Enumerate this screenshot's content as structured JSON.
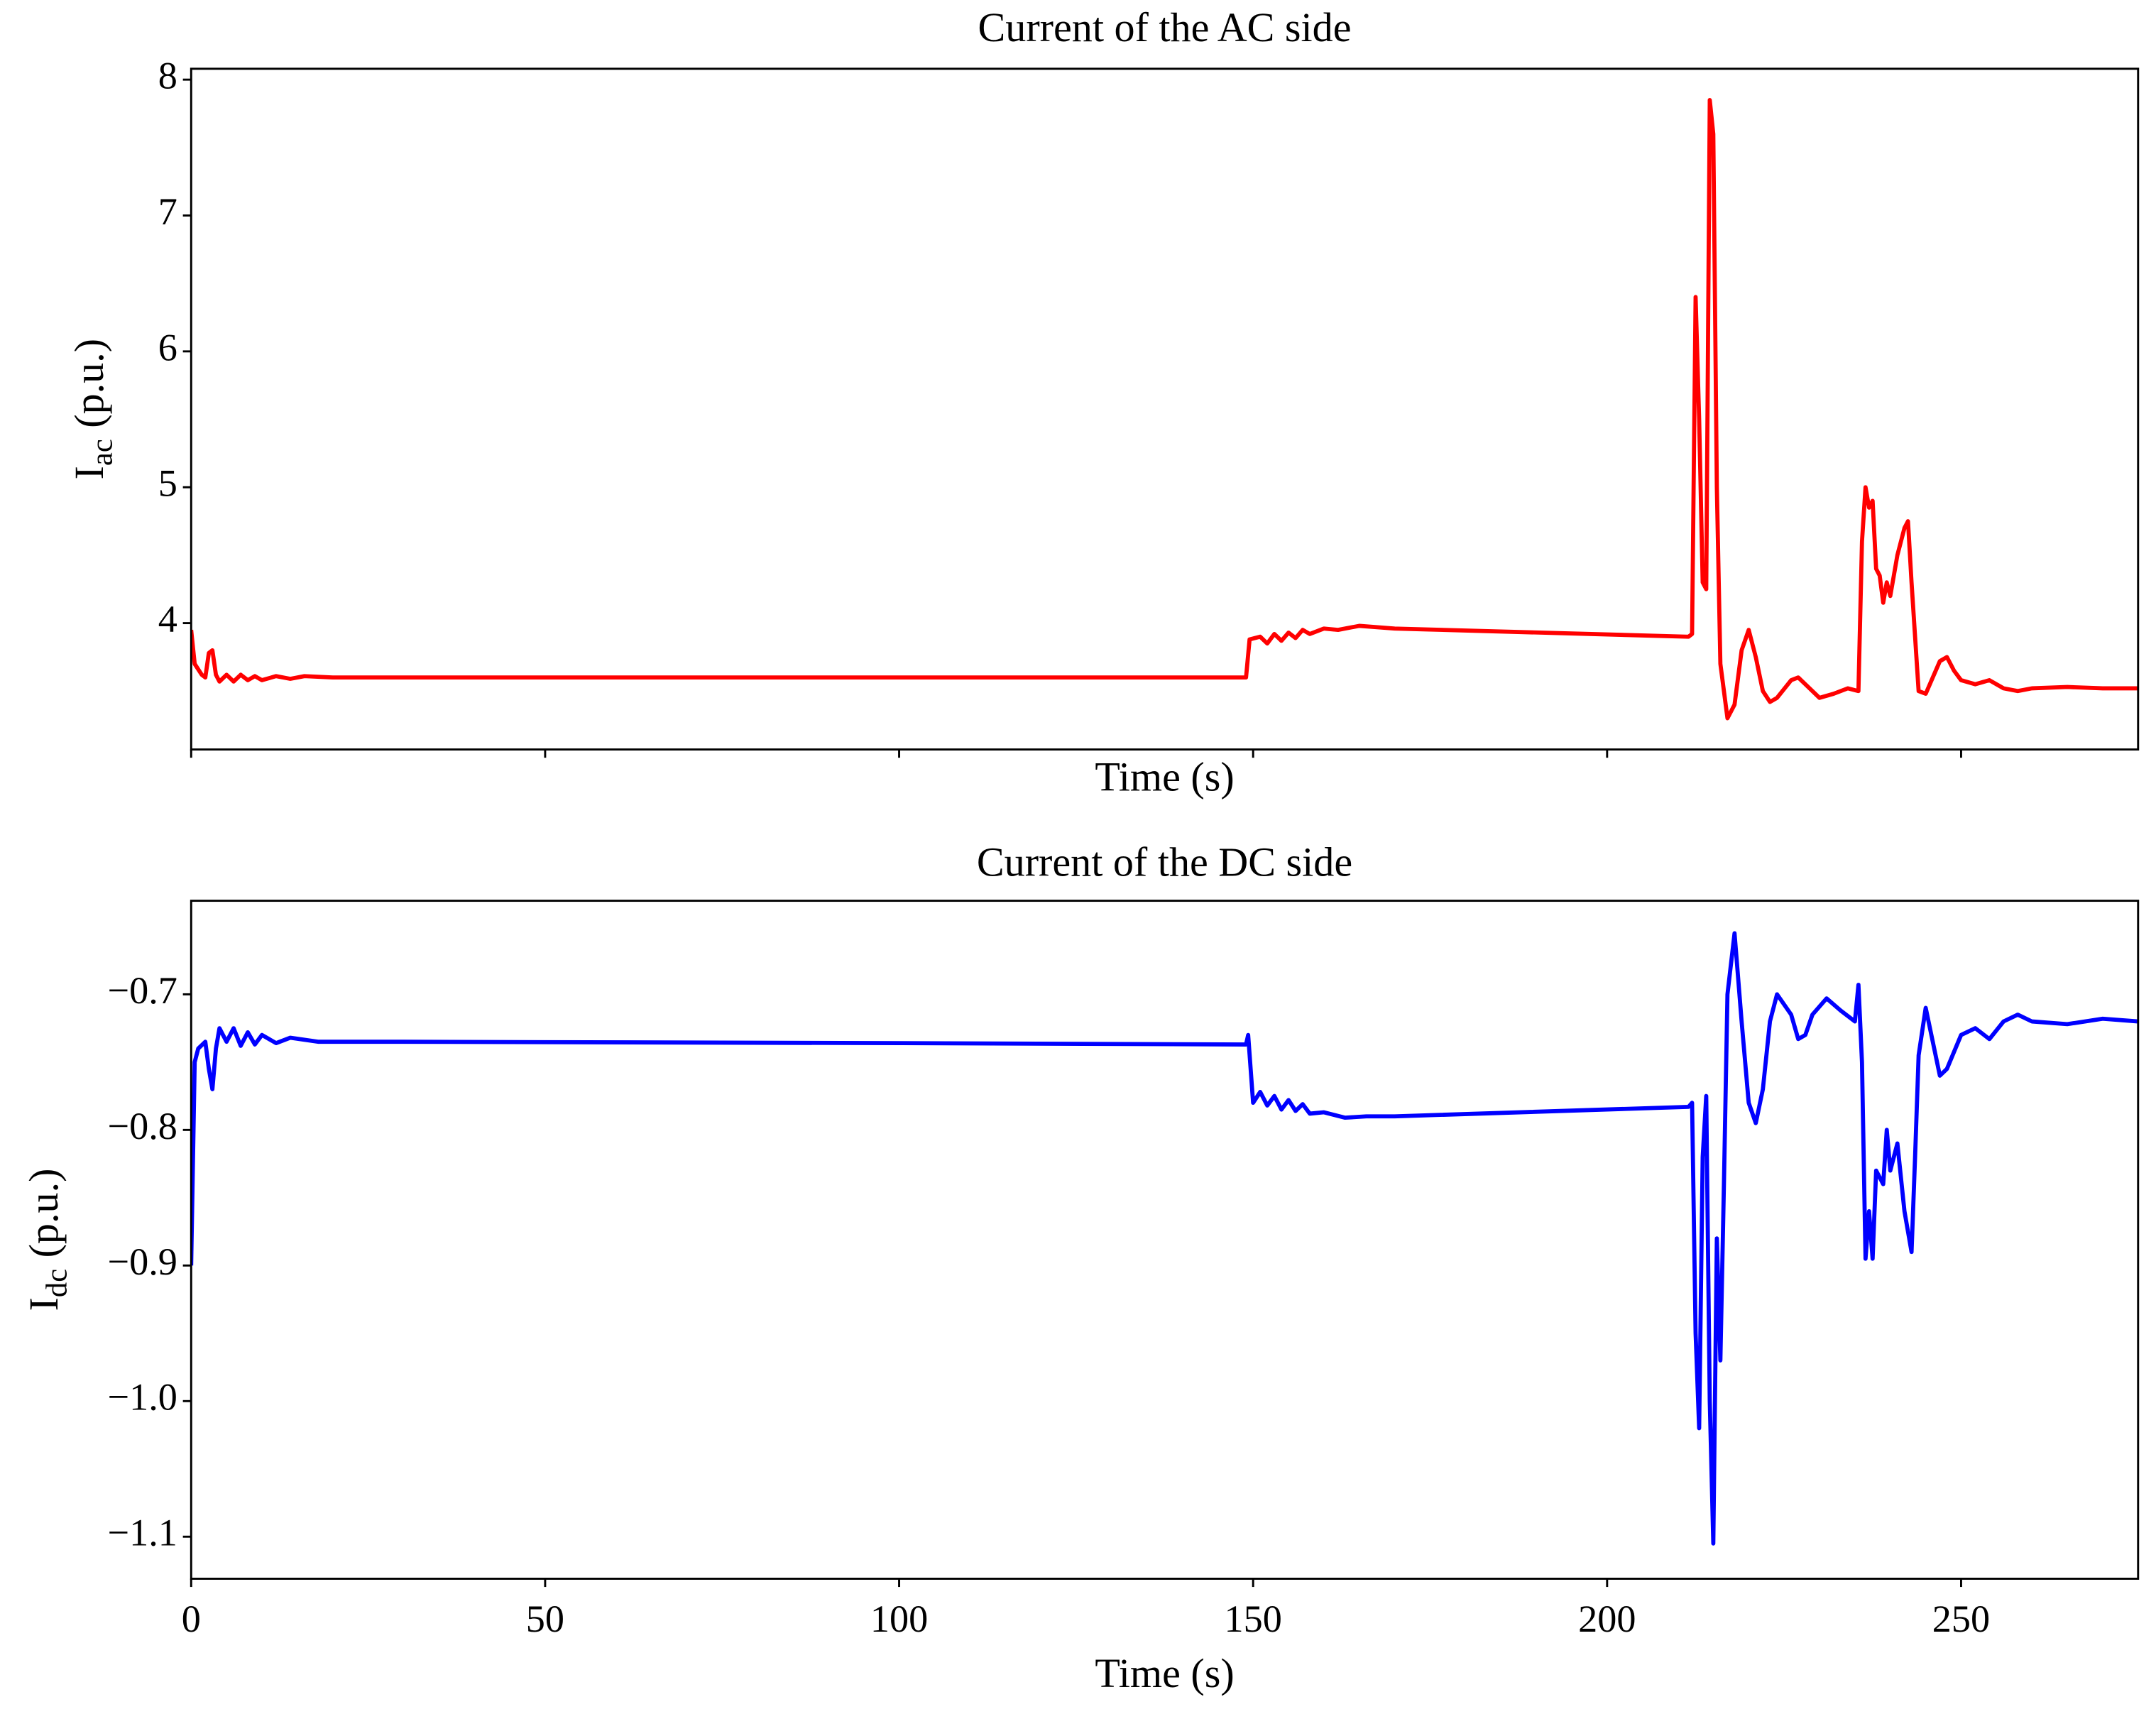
{
  "chart_data": [
    {
      "type": "line",
      "title": "Current of the AC side",
      "xlabel": "Time (s)",
      "ylabel": "I",
      "ylabel_sub": "ac",
      "ylabel_unit": "(p.u.)",
      "color": "#ff0000",
      "show_xtick_labels": false,
      "xlim": [
        0,
        275
      ],
      "xticks": [
        0,
        50,
        100,
        150,
        200,
        250
      ],
      "ylim": [
        3.07,
        8.08
      ],
      "yticks": [
        4,
        5,
        6,
        7,
        8
      ],
      "x": [
        0,
        0.5,
        1.5,
        2,
        2.5,
        3,
        3.5,
        4,
        5,
        6,
        7,
        8,
        9,
        10,
        12,
        14,
        16,
        20,
        50,
        100,
        148.5,
        149,
        149.5,
        151,
        152,
        153,
        154,
        155,
        156,
        157,
        158,
        160,
        162,
        165,
        170,
        211.5,
        212,
        212.5,
        213,
        213.5,
        214,
        214.5,
        215,
        215.5,
        216,
        217,
        218,
        219,
        220,
        221,
        222,
        223,
        224,
        226,
        227,
        228,
        230,
        232,
        234,
        235.5,
        236,
        236.5,
        237,
        237.5,
        238,
        238.5,
        239,
        239.5,
        240,
        241,
        242,
        242.5,
        243,
        244,
        245,
        246,
        247,
        248,
        249,
        250,
        252,
        254,
        256,
        258,
        260,
        265,
        270,
        275
      ],
      "values": [
        3.95,
        3.7,
        3.62,
        3.6,
        3.78,
        3.8,
        3.62,
        3.57,
        3.62,
        3.57,
        3.62,
        3.58,
        3.61,
        3.58,
        3.61,
        3.59,
        3.61,
        3.6,
        3.6,
        3.6,
        3.6,
        3.6,
        3.88,
        3.9,
        3.85,
        3.92,
        3.87,
        3.93,
        3.89,
        3.95,
        3.92,
        3.96,
        3.95,
        3.98,
        3.96,
        3.9,
        3.92,
        6.4,
        5.5,
        4.3,
        4.25,
        7.85,
        7.6,
        5.0,
        3.7,
        3.3,
        3.4,
        3.8,
        3.95,
        3.75,
        3.5,
        3.42,
        3.45,
        3.58,
        3.6,
        3.55,
        3.45,
        3.48,
        3.52,
        3.5,
        4.6,
        5.0,
        4.85,
        4.9,
        4.4,
        4.35,
        4.15,
        4.3,
        4.2,
        4.5,
        4.7,
        4.75,
        4.3,
        3.5,
        3.48,
        3.6,
        3.72,
        3.75,
        3.65,
        3.58,
        3.55,
        3.58,
        3.52,
        3.5,
        3.52,
        3.53,
        3.52,
        3.52
      ]
    },
    {
      "type": "line",
      "title": "Current of the DC side",
      "xlabel": "Time (s)",
      "ylabel": "I",
      "ylabel_sub": "dc",
      "ylabel_unit": "(p.u.)",
      "color": "#0000ff",
      "show_xtick_labels": true,
      "xlim": [
        0,
        275
      ],
      "xticks": [
        0,
        50,
        100,
        150,
        200,
        250
      ],
      "ylim": [
        -1.131,
        -0.631
      ],
      "yticks": [
        {
          "value": -1.1,
          "label": "−1.1"
        },
        {
          "value": -1.0,
          "label": "−1.0"
        },
        {
          "value": -0.9,
          "label": "−0.9"
        },
        {
          "value": -0.8,
          "label": "−0.8"
        },
        {
          "value": -0.7,
          "label": "−0.7"
        }
      ],
      "x": [
        0,
        0.5,
        1,
        2,
        2.5,
        3,
        3.5,
        4,
        5,
        6,
        7,
        8,
        9,
        10,
        12,
        14,
        18,
        30,
        100,
        149,
        149.3,
        150,
        151,
        152,
        153,
        154,
        155,
        156,
        157,
        158,
        160,
        163,
        166,
        170,
        211.5,
        212,
        212.5,
        213,
        213.5,
        214,
        214.5,
        215,
        215.5,
        216,
        216.5,
        217,
        218,
        219,
        220,
        221,
        222,
        223,
        224,
        226,
        227,
        228,
        229,
        231,
        233,
        235,
        235.5,
        236,
        236.5,
        237,
        237.5,
        238,
        239,
        239.5,
        240,
        241,
        242,
        243,
        243.5,
        244,
        245,
        246,
        247,
        248,
        250,
        252,
        254,
        256,
        258,
        260,
        265,
        270,
        275
      ],
      "values": [
        -0.9,
        -0.75,
        -0.74,
        -0.735,
        -0.755,
        -0.77,
        -0.74,
        -0.725,
        -0.735,
        -0.725,
        -0.738,
        -0.728,
        -0.737,
        -0.73,
        -0.736,
        -0.732,
        -0.735,
        -0.735,
        -0.736,
        -0.737,
        -0.73,
        -0.78,
        -0.772,
        -0.782,
        -0.775,
        -0.785,
        -0.778,
        -0.786,
        -0.781,
        -0.788,
        -0.787,
        -0.791,
        -0.79,
        -0.79,
        -0.783,
        -0.78,
        -0.95,
        -1.02,
        -0.82,
        -0.775,
        -1.0,
        -1.105,
        -0.88,
        -0.97,
        -0.84,
        -0.7,
        -0.655,
        -0.72,
        -0.78,
        -0.795,
        -0.77,
        -0.72,
        -0.7,
        -0.715,
        -0.733,
        -0.73,
        -0.715,
        -0.703,
        -0.712,
        -0.72,
        -0.693,
        -0.75,
        -0.895,
        -0.86,
        -0.895,
        -0.83,
        -0.84,
        -0.8,
        -0.83,
        -0.81,
        -0.86,
        -0.89,
        -0.82,
        -0.745,
        -0.71,
        -0.735,
        -0.76,
        -0.755,
        -0.73,
        -0.725,
        -0.733,
        -0.72,
        -0.715,
        -0.72,
        -0.722,
        -0.718,
        -0.72
      ]
    }
  ]
}
